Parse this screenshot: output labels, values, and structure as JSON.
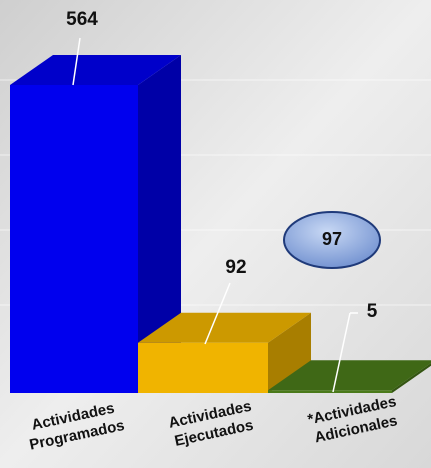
{
  "chart_data": {
    "type": "bar3d",
    "categories": [
      [
        "Actividades",
        "Programados"
      ],
      [
        "Actividades",
        "Ejecutados"
      ],
      [
        "*Actividades",
        "Adicionales"
      ]
    ],
    "values": [
      564,
      92,
      5
    ],
    "colors": [
      "#0000ee",
      "#f0b400",
      "#4a7a1a"
    ],
    "annotation": 97
  }
}
